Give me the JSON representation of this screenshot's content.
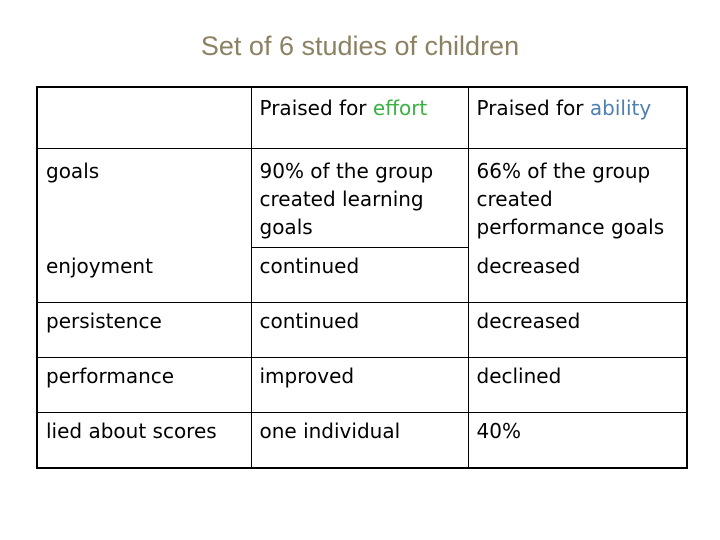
{
  "title": "Set of 6 studies of children",
  "accent_colors": {
    "title": "#8c8263",
    "effort": "#3cb043",
    "ability": "#4f7fb0"
  },
  "table": {
    "header": {
      "corner": "",
      "col_effort": {
        "prefix": "Praised for ",
        "keyword": "effort"
      },
      "col_ability": {
        "prefix": "Praised for ",
        "keyword": "ability"
      }
    },
    "rows": {
      "goals": {
        "label": "goals",
        "effort_lines": [
          "90% of the group",
          "created learning",
          "goals"
        ],
        "ability_lines": [
          "66% of the group",
          "created",
          "performance goals"
        ]
      },
      "enjoyment": {
        "label": "enjoyment",
        "effort": "continued",
        "ability": "decreased"
      },
      "persistence": {
        "label": "persistence",
        "effort": "continued",
        "ability": "decreased"
      },
      "performance": {
        "label": "performance",
        "effort": "improved",
        "ability": "declined"
      },
      "lied": {
        "label": "lied about scores",
        "effort": "one individual",
        "ability": "40%"
      }
    }
  }
}
